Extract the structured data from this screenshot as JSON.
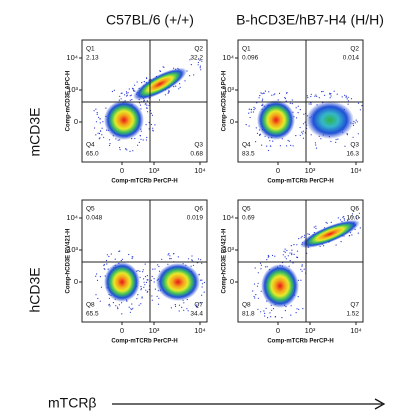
{
  "column_headers": [
    "C57BL/6 (+/+)",
    "B-hCD3E/hB7-H4 (H/H)"
  ],
  "row_labels": [
    "mCD3E",
    "hCD3E"
  ],
  "axis_arrow_label": "mTCRβ",
  "panels": [
    {
      "y_axis_label": "Comp-mCD3E APC-H",
      "x_axis_label": "Comp-mTCRb PerCP-H",
      "x_tick_labels": [
        "0",
        "10³",
        "10⁴"
      ],
      "y_tick_labels": [
        "10⁴",
        "10³",
        "0"
      ],
      "quadrants": [
        {
          "name": "Q1",
          "value": "2.13"
        },
        {
          "name": "Q2",
          "value": "32.2"
        },
        {
          "name": "Q3",
          "value": "0.68"
        },
        {
          "name": "Q4",
          "value": "65.0"
        }
      ]
    },
    {
      "y_axis_label": "Comp-mCD3E APC-H",
      "x_axis_label": "Comp-mTCRb PerCP-H",
      "x_tick_labels": [
        "0",
        "10³",
        "10⁴"
      ],
      "y_tick_labels": [
        "10⁴",
        "10³",
        "0"
      ],
      "quadrants": [
        {
          "name": "Q1",
          "value": "0.096"
        },
        {
          "name": "Q2",
          "value": "0.014"
        },
        {
          "name": "Q3",
          "value": "16.3"
        },
        {
          "name": "Q4",
          "value": "83.5"
        }
      ]
    },
    {
      "y_axis_label": "Comp-hCD3E BV421-H",
      "x_axis_label": "Comp-mTCRb PerCP-H",
      "x_tick_labels": [
        "0",
        "10³",
        "10⁴"
      ],
      "y_tick_labels": [
        "10⁴",
        "10³",
        "0"
      ],
      "quadrants": [
        {
          "name": "Q5",
          "value": "0.048"
        },
        {
          "name": "Q6",
          "value": "0.019"
        },
        {
          "name": "Q7",
          "value": "34.4"
        },
        {
          "name": "Q8",
          "value": "65.5"
        }
      ]
    },
    {
      "y_axis_label": "Comp-hCD3E BV421-H",
      "x_axis_label": "Comp-mTCRb PerCP-H",
      "x_tick_labels": [
        "0",
        "10³",
        "10⁴"
      ],
      "y_tick_labels": [
        "10⁴",
        "10³",
        "0"
      ],
      "quadrants": [
        {
          "name": "Q5",
          "value": "0.69"
        },
        {
          "name": "Q6",
          "value": "16.0"
        },
        {
          "name": "Q7",
          "value": "1.52"
        },
        {
          "name": "Q8",
          "value": "81.8"
        }
      ]
    }
  ]
}
